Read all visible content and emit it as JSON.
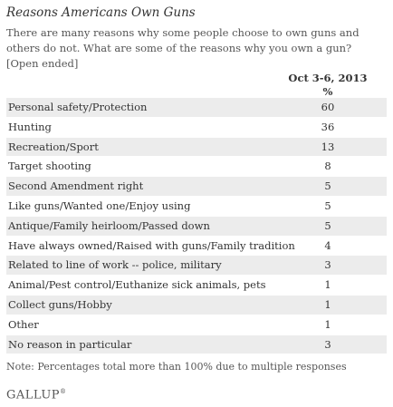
{
  "chart_data": {
    "type": "table",
    "title": "Reasons Americans Own Guns",
    "subtitle": "There are many reasons why some people choose to own guns and others do not. What are some of the reasons why you own a gun? [Open ended]",
    "column_header": "Oct 3-6, 2013",
    "unit": "%",
    "categories": [
      "Personal safety/Protection",
      "Hunting",
      "Recreation/Sport",
      "Target shooting",
      "Second Amendment right",
      "Like guns/Wanted one/Enjoy using",
      "Antique/Family heirloom/Passed down",
      "Have always owned/Raised with guns/Family tradition",
      "Related to line of work -- police, military",
      "Animal/Pest control/Euthanize sick animals, pets",
      "Collect guns/Hobby",
      "Other",
      "No reason in particular"
    ],
    "values": [
      60,
      36,
      13,
      8,
      5,
      5,
      5,
      4,
      3,
      1,
      1,
      1,
      3
    ],
    "note": "Note: Percentages total more than 100% due to multiple responses"
  },
  "branding": {
    "logo_text": "GALLUP",
    "logo_mark": "®"
  },
  "colors": {
    "row_shade": "#ececec",
    "text": "#333333"
  }
}
